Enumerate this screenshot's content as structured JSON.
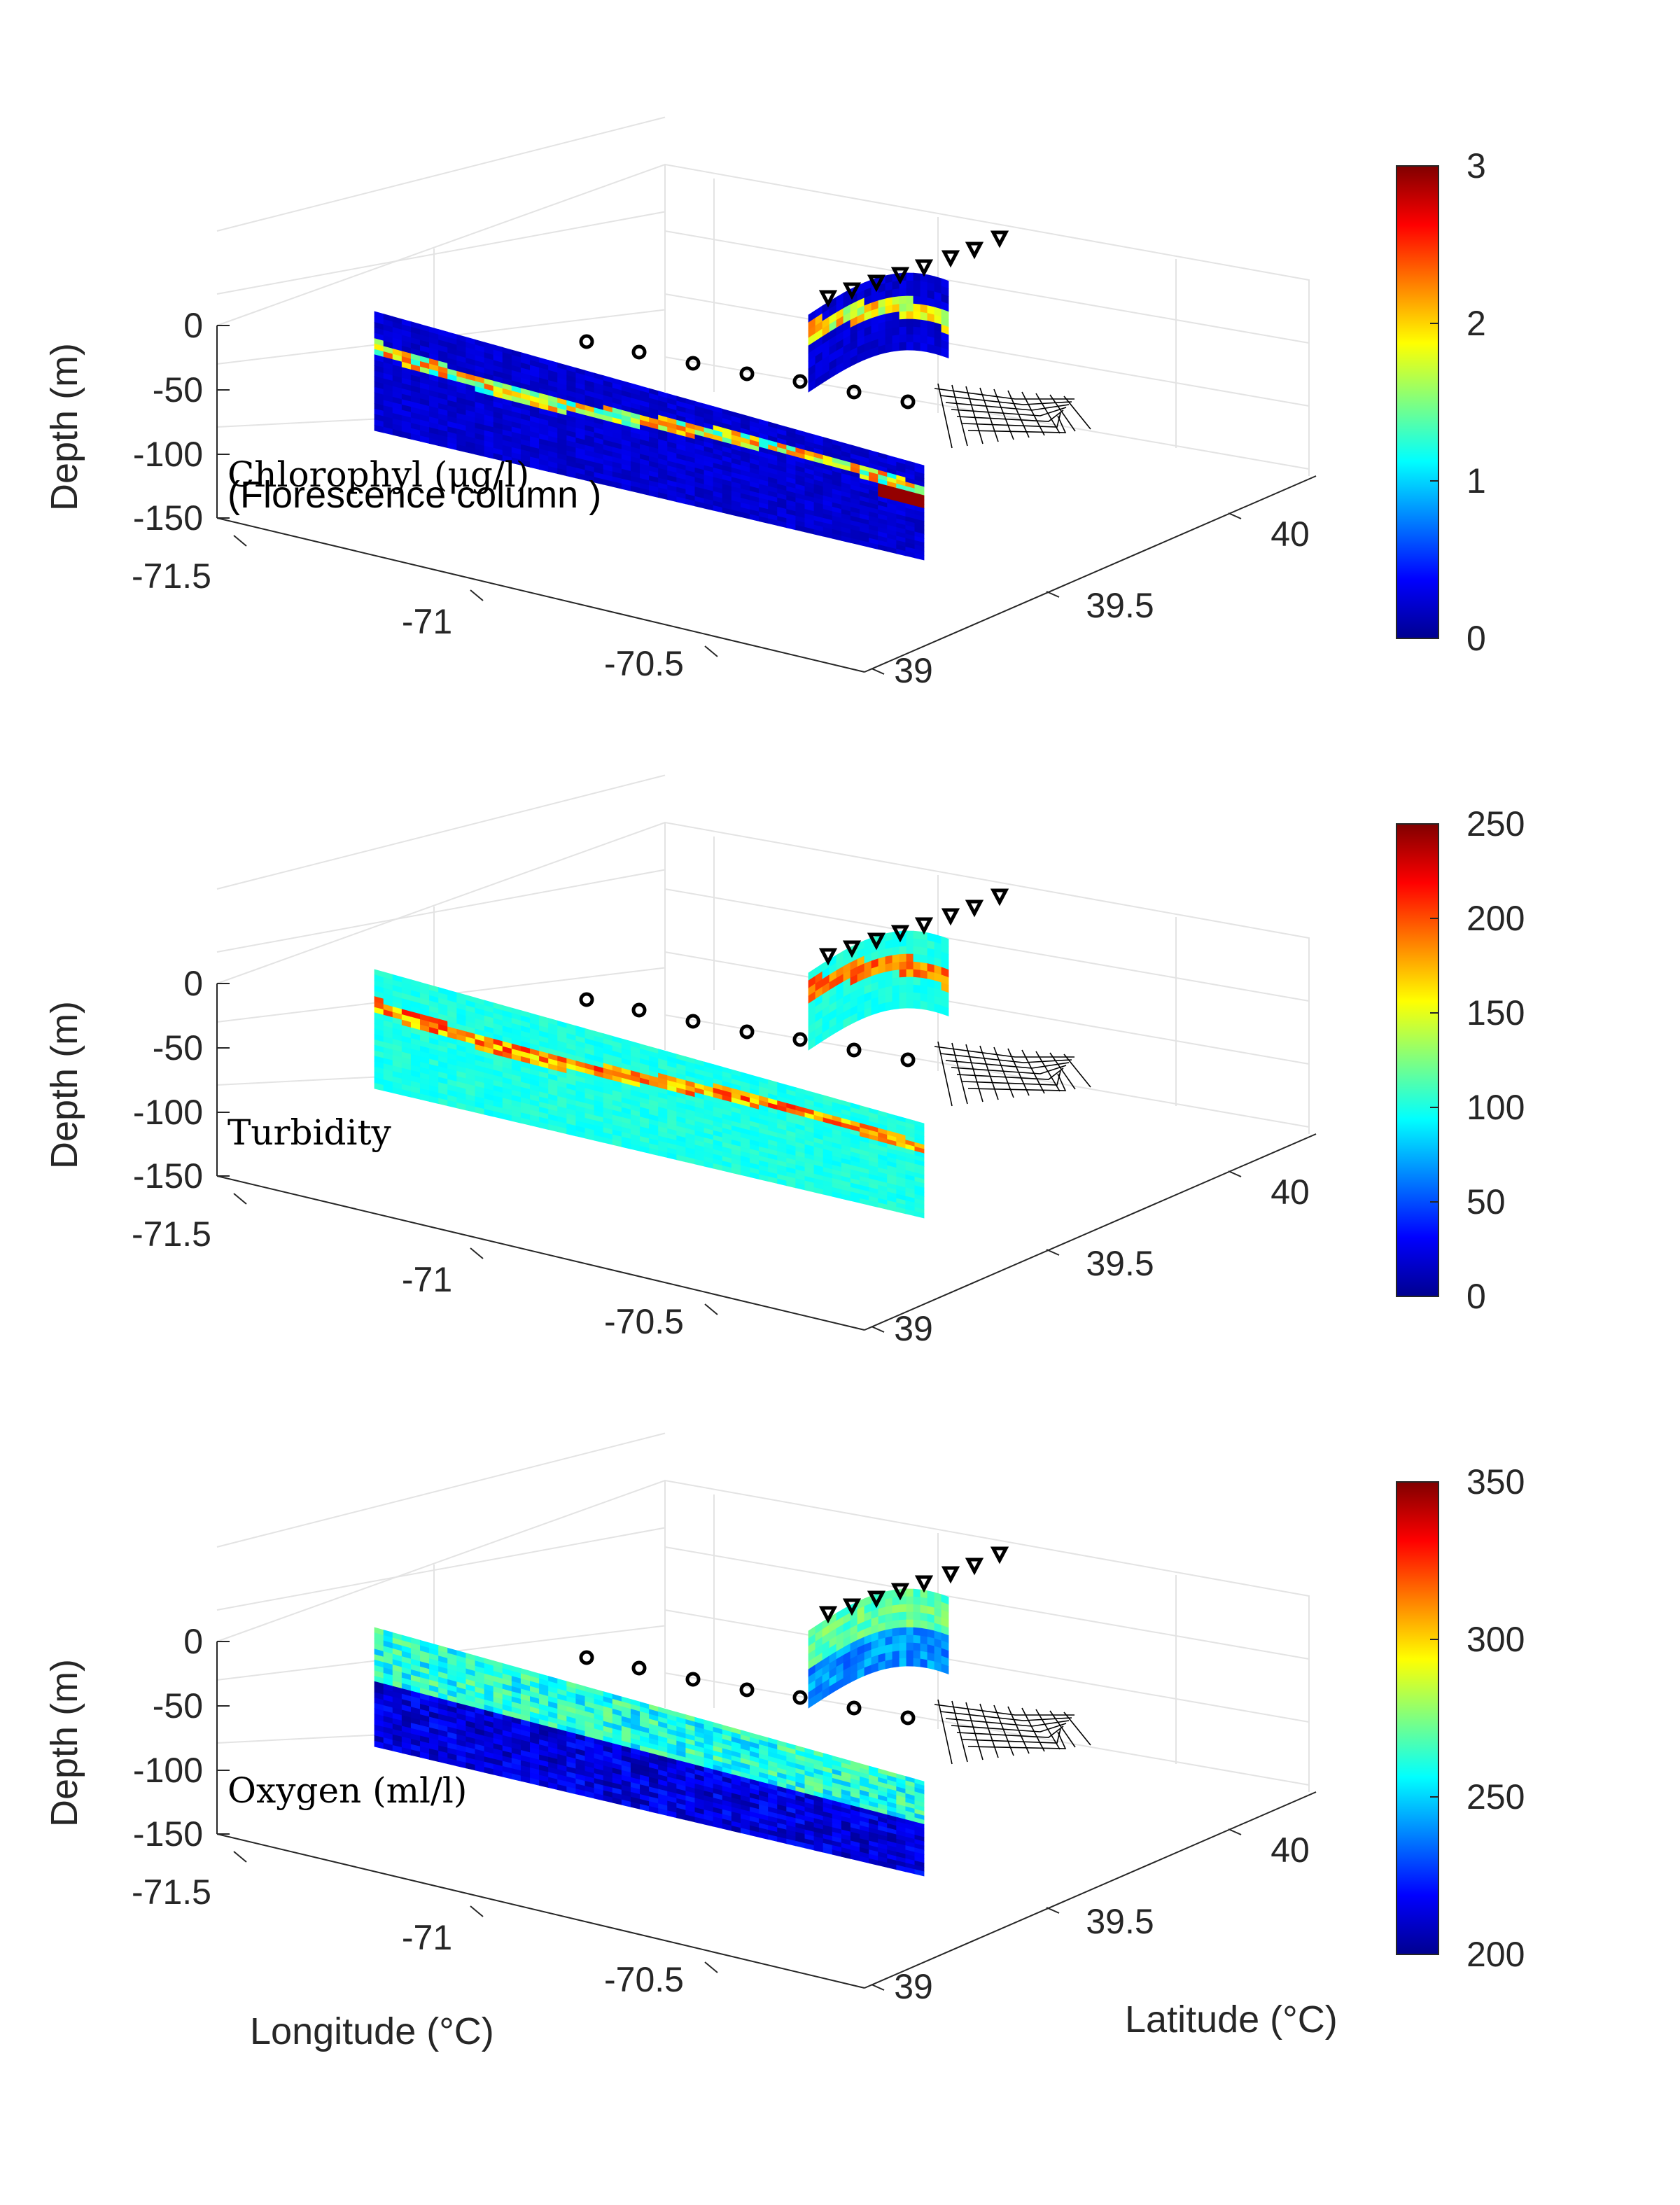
{
  "chart_data": [
    {
      "type": "heatmap",
      "annotation_lines": [
        "Chlorophyl (μg/l)",
        "(Florescence column )"
      ],
      "colorbar": {
        "min": 0,
        "max": 3,
        "ticks": [
          "0",
          "1",
          "2",
          "3"
        ]
      },
      "zlabel": "Depth (m)",
      "z_ticks": [
        "0",
        "-50",
        "-100",
        "-150"
      ],
      "x_ticks": [
        "-71.5",
        "-71",
        "-70.5"
      ],
      "y_ticks": [
        "39",
        "39.5",
        "40"
      ],
      "xlim": [
        -71.6,
        -70.2
      ],
      "ylim": [
        39.0,
        40.2
      ],
      "zlim": [
        -150,
        0
      ],
      "feature": "thin high band near 50 m, red patch near the shelf break at about -100 m",
      "background_level": 0.25,
      "band_level": 1.5,
      "band_peak": 2.3
    },
    {
      "type": "heatmap",
      "annotation_lines": [
        "Turbidity"
      ],
      "colorbar": {
        "min": 0,
        "max": 250,
        "ticks": [
          "0",
          "50",
          "100",
          "150",
          "200",
          "250"
        ]
      },
      "zlabel": "Depth (m)",
      "z_ticks": [
        "0",
        "-50",
        "-100",
        "-150"
      ],
      "x_ticks": [
        "-71.5",
        "-71",
        "-70.5"
      ],
      "y_ticks": [
        "39",
        "39.5",
        "40"
      ],
      "xlim": [
        -71.6,
        -70.2
      ],
      "ylim": [
        39.0,
        40.2
      ],
      "zlim": [
        -150,
        0
      ],
      "feature": "uniform cyan body with a red-orange band near 50 m",
      "background_level": 100,
      "band_level": 170,
      "band_peak": 210
    },
    {
      "type": "heatmap",
      "annotation_lines": [
        "Oxygen (ml/l)"
      ],
      "colorbar": {
        "min": 200,
        "max": 350,
        "ticks": [
          "200",
          "250",
          "300",
          "350"
        ]
      },
      "zlabel": "Depth (m)",
      "z_ticks": [
        "0",
        "-50",
        "-100",
        "-150"
      ],
      "x_ticks": [
        "-71.5",
        "-71",
        "-70.5"
      ],
      "y_ticks": [
        "39",
        "39.5",
        "40"
      ],
      "xlim": [
        -71.6,
        -70.2
      ],
      "ylim": [
        39.0,
        40.2
      ],
      "zlim": [
        -150,
        0
      ],
      "feature": "cyan-green surface layer over a dark blue deep layer",
      "background_level": 210,
      "band_level": 260,
      "band_peak": 275
    }
  ],
  "xlabel": "Longitude (°C)",
  "ylabel": "Latitude (°C)",
  "markers": {
    "circles": "station markers along the cross-shelf section",
    "triangles": "station markers along the along-shelf section"
  }
}
